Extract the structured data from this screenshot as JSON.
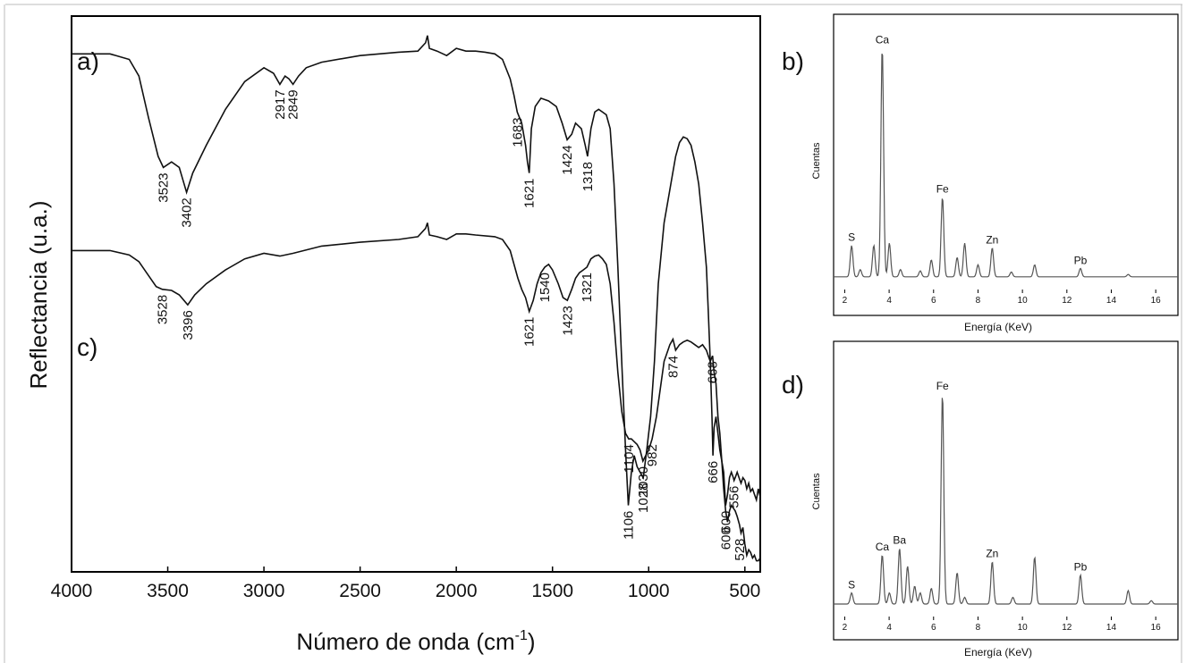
{
  "chart_data": [
    {
      "type": "line",
      "panel": "ftir",
      "xlabel_main": "Número de onda (cm",
      "xlabel_sup": "-1",
      "xlabel_tail": ")",
      "ylabel": "Reflectancia (u.a.)",
      "xlim": [
        4000,
        420
      ],
      "x_ticks": [
        4000,
        3500,
        3000,
        2500,
        2000,
        1500,
        1000,
        500
      ],
      "grid": false,
      "series": [
        {
          "panel_label": "a)",
          "x": [
            4000,
            3800,
            3700,
            3650,
            3600,
            3550,
            3523,
            3480,
            3440,
            3402,
            3370,
            3300,
            3200,
            3100,
            3000,
            2950,
            2917,
            2890,
            2870,
            2849,
            2820,
            2780,
            2700,
            2500,
            2300,
            2200,
            2160,
            2150,
            2140,
            2100,
            2050,
            2000,
            1950,
            1900,
            1850,
            1800,
            1760,
            1720,
            1700,
            1683,
            1660,
            1640,
            1630,
            1621,
            1610,
            1590,
            1560,
            1520,
            1480,
            1450,
            1424,
            1400,
            1380,
            1350,
            1330,
            1318,
            1300,
            1280,
            1260,
            1240,
            1220,
            1200,
            1180,
            1160,
            1140,
            1120,
            1106,
            1090,
            1075,
            1060,
            1045,
            1028,
            1010,
            990,
            970,
            950,
            920,
            900,
            880,
            860,
            840,
            820,
            800,
            780,
            760,
            740,
            720,
            700,
            690,
            680,
            670,
            666,
            660,
            650,
            640,
            630,
            620,
            610,
            600,
            590,
            580,
            570,
            560,
            556,
            550,
            540,
            530,
            520,
            510,
            500,
            490,
            480,
            470,
            460,
            450,
            440,
            430,
            420
          ],
          "y": [
            93.5,
            93.5,
            92.5,
            89.5,
            82,
            75,
            73,
            74,
            73,
            68.5,
            72,
            77,
            83.5,
            88.5,
            91,
            90,
            88,
            89.5,
            89,
            88,
            89.5,
            91,
            92,
            93.2,
            93.8,
            94,
            95.5,
            96.8,
            94.5,
            94,
            93.2,
            94.5,
            94,
            94,
            93.8,
            93.5,
            92.5,
            89,
            86,
            83,
            81,
            77,
            74,
            72,
            80,
            84,
            85.5,
            85,
            84,
            81,
            78,
            79,
            81,
            80,
            77,
            75,
            80,
            83,
            83.5,
            83,
            82.5,
            80,
            70,
            55,
            38,
            22,
            12,
            18,
            21,
            19,
            18,
            17,
            22,
            28,
            38,
            52,
            63,
            67,
            71,
            75,
            77.5,
            78.5,
            78.2,
            77,
            74,
            70,
            63,
            55,
            47,
            38,
            27,
            21,
            26,
            28,
            25,
            22,
            20,
            18,
            12,
            14,
            17,
            18,
            17,
            16.5,
            17,
            18,
            17,
            16,
            17,
            16.5,
            15,
            16,
            14.5,
            15,
            14,
            13,
            15,
            13.5
          ]
        },
        {
          "panel_label": "c)",
          "x": [
            4000,
            3800,
            3700,
            3650,
            3600,
            3560,
            3528,
            3480,
            3440,
            3396,
            3360,
            3300,
            3200,
            3100,
            3000,
            2917,
            2849,
            2700,
            2500,
            2300,
            2200,
            2160,
            2150,
            2140,
            2100,
            2050,
            2000,
            1950,
            1900,
            1800,
            1760,
            1720,
            1700,
            1680,
            1660,
            1640,
            1621,
            1600,
            1580,
            1560,
            1540,
            1520,
            1500,
            1470,
            1445,
            1423,
            1400,
            1380,
            1360,
            1340,
            1321,
            1300,
            1280,
            1260,
            1240,
            1220,
            1200,
            1180,
            1160,
            1140,
            1120,
            1104,
            1090,
            1075,
            1060,
            1045,
            1030,
            1015,
            1000,
            982,
            960,
            940,
            920,
            900,
            890,
            874,
            860,
            840,
            820,
            800,
            780,
            760,
            740,
            720,
            700,
            690,
            680,
            668,
            660,
            650,
            640,
            630,
            620,
            610,
            600,
            590,
            580,
            570,
            560,
            550,
            540,
            528,
            520,
            510,
            500,
            490,
            480,
            470,
            460,
            450,
            440,
            430,
            420
          ],
          "y": [
            58,
            58,
            57.2,
            56,
            53.5,
            51.5,
            51,
            50.8,
            50,
            48.2,
            50,
            52,
            54.5,
            56.5,
            57.5,
            57,
            57.5,
            58.8,
            59.5,
            60,
            60.5,
            62,
            63,
            60.8,
            60.5,
            60,
            61,
            61,
            60.8,
            60.5,
            60,
            58,
            55.5,
            53,
            51,
            49.5,
            47,
            49,
            52,
            54,
            55,
            55.5,
            54.5,
            52,
            49.5,
            49,
            51,
            53,
            54,
            54.5,
            55,
            56.5,
            57,
            57.2,
            56.5,
            55.5,
            52,
            45,
            36,
            29,
            25,
            24,
            24,
            23.5,
            23,
            22,
            20,
            21,
            22,
            24,
            28,
            33,
            38,
            40,
            41,
            42,
            40,
            41,
            41.5,
            41.8,
            41.5,
            41,
            40.5,
            41,
            40,
            39,
            38,
            39,
            36,
            34,
            28,
            25,
            20,
            15,
            11,
            9,
            11,
            12,
            11.5,
            11,
            10,
            8.5,
            7,
            8,
            5,
            3,
            4,
            3.5,
            2.5,
            3,
            2,
            2,
            2.5
          ]
        }
      ],
      "annotations": [
        {
          "text": "3523",
          "series": 0,
          "x": 3523,
          "y": 73
        },
        {
          "text": "3402",
          "series": 0,
          "x": 3402,
          "y": 68.5
        },
        {
          "text": "2917",
          "series": 0,
          "x": 2917,
          "y": 88
        },
        {
          "text": "2849",
          "series": 0,
          "x": 2849,
          "y": 88
        },
        {
          "text": "1683",
          "series": 0,
          "x": 1683,
          "y": 83
        },
        {
          "text": "1621",
          "series": 0,
          "x": 1621,
          "y": 72
        },
        {
          "text": "1424",
          "series": 0,
          "x": 1424,
          "y": 78
        },
        {
          "text": "1318",
          "series": 0,
          "x": 1318,
          "y": 75
        },
        {
          "text": "1106",
          "series": 0,
          "x": 1106,
          "y": 12
        },
        {
          "text": "1028",
          "series": 0,
          "x": 1028,
          "y": 17
        },
        {
          "text": "666",
          "series": 0,
          "x": 666,
          "y": 21
        },
        {
          "text": "600",
          "series": 0,
          "x": 600,
          "y": 12
        },
        {
          "text": "556",
          "series": 0,
          "x": 556,
          "y": 16.5
        },
        {
          "text": "3528",
          "series": 1,
          "x": 3528,
          "y": 51
        },
        {
          "text": "3396",
          "series": 1,
          "x": 3396,
          "y": 48.2
        },
        {
          "text": "1621",
          "series": 1,
          "x": 1621,
          "y": 47
        },
        {
          "text": "1540",
          "series": 1,
          "x": 1540,
          "y": 55
        },
        {
          "text": "1423",
          "series": 1,
          "x": 1423,
          "y": 49
        },
        {
          "text": "1321",
          "series": 1,
          "x": 1321,
          "y": 55
        },
        {
          "text": "1104",
          "series": 1,
          "x": 1104,
          "y": 24
        },
        {
          "text": "1030",
          "series": 1,
          "x": 1030,
          "y": 20
        },
        {
          "text": "982",
          "series": 1,
          "x": 982,
          "y": 24
        },
        {
          "text": "874",
          "series": 1,
          "x": 874,
          "y": 40
        },
        {
          "text": "668",
          "series": 1,
          "x": 668,
          "y": 39
        },
        {
          "text": "600",
          "series": 1,
          "x": 600,
          "y": 9
        },
        {
          "text": "528",
          "series": 1,
          "x": 528,
          "y": 7
        }
      ]
    },
    {
      "type": "line",
      "panel": "edx",
      "panel_label": "b)",
      "xlabel": "Energía (KeV)",
      "ylabel": "Cuentas",
      "xlim": [
        1.5,
        17
      ],
      "ylim": [
        0,
        100
      ],
      "x_ticks": [
        2,
        4,
        6,
        8,
        10,
        12,
        14,
        16
      ],
      "peaks": [
        {
          "x": 2.31,
          "h": 13
        },
        {
          "x": 2.7,
          "h": 3
        },
        {
          "x": 3.31,
          "h": 13
        },
        {
          "x": 3.69,
          "h": 95
        },
        {
          "x": 4.01,
          "h": 14
        },
        {
          "x": 4.51,
          "h": 3
        },
        {
          "x": 5.4,
          "h": 2.5
        },
        {
          "x": 5.9,
          "h": 7
        },
        {
          "x": 6.4,
          "h": 33
        },
        {
          "x": 7.06,
          "h": 8
        },
        {
          "x": 7.4,
          "h": 14
        },
        {
          "x": 8.0,
          "h": 5
        },
        {
          "x": 8.64,
          "h": 12
        },
        {
          "x": 9.5,
          "h": 2
        },
        {
          "x": 10.55,
          "h": 5
        },
        {
          "x": 12.61,
          "h": 3.5
        },
        {
          "x": 14.76,
          "h": 1
        }
      ],
      "labels": [
        {
          "text": "S",
          "x": 2.31,
          "h": 13
        },
        {
          "text": "Ca",
          "x": 3.69,
          "h": 95
        },
        {
          "text": "Fe",
          "x": 6.4,
          "h": 33
        },
        {
          "text": "Zn",
          "x": 8.64,
          "h": 12
        },
        {
          "text": "Pb",
          "x": 12.61,
          "h": 3.5
        }
      ]
    },
    {
      "type": "line",
      "panel": "edx",
      "panel_label": "d)",
      "xlabel": "Energía (KeV)",
      "ylabel": "Cuentas",
      "xlim": [
        1.5,
        17
      ],
      "ylim": [
        0,
        100
      ],
      "x_ticks": [
        2,
        4,
        6,
        8,
        10,
        12,
        14,
        16
      ],
      "peaks": [
        {
          "x": 2.31,
          "h": 5
        },
        {
          "x": 3.69,
          "h": 22
        },
        {
          "x": 4.01,
          "h": 5
        },
        {
          "x": 4.47,
          "h": 25
        },
        {
          "x": 4.83,
          "h": 17
        },
        {
          "x": 5.15,
          "h": 8
        },
        {
          "x": 5.4,
          "h": 5
        },
        {
          "x": 5.9,
          "h": 7
        },
        {
          "x": 6.4,
          "h": 94
        },
        {
          "x": 7.06,
          "h": 14
        },
        {
          "x": 7.4,
          "h": 3
        },
        {
          "x": 8.64,
          "h": 19
        },
        {
          "x": 9.57,
          "h": 3
        },
        {
          "x": 10.55,
          "h": 21
        },
        {
          "x": 12.61,
          "h": 13
        },
        {
          "x": 14.76,
          "h": 6
        },
        {
          "x": 15.8,
          "h": 1.5
        }
      ],
      "labels": [
        {
          "text": "S",
          "x": 2.31,
          "h": 5
        },
        {
          "text": "Ca",
          "x": 3.69,
          "h": 22
        },
        {
          "text": "Ba",
          "x": 4.47,
          "h": 25
        },
        {
          "text": "Fe",
          "x": 6.4,
          "h": 94
        },
        {
          "text": "Zn",
          "x": 8.64,
          "h": 19
        },
        {
          "text": "Pb",
          "x": 12.61,
          "h": 13
        }
      ]
    }
  ]
}
